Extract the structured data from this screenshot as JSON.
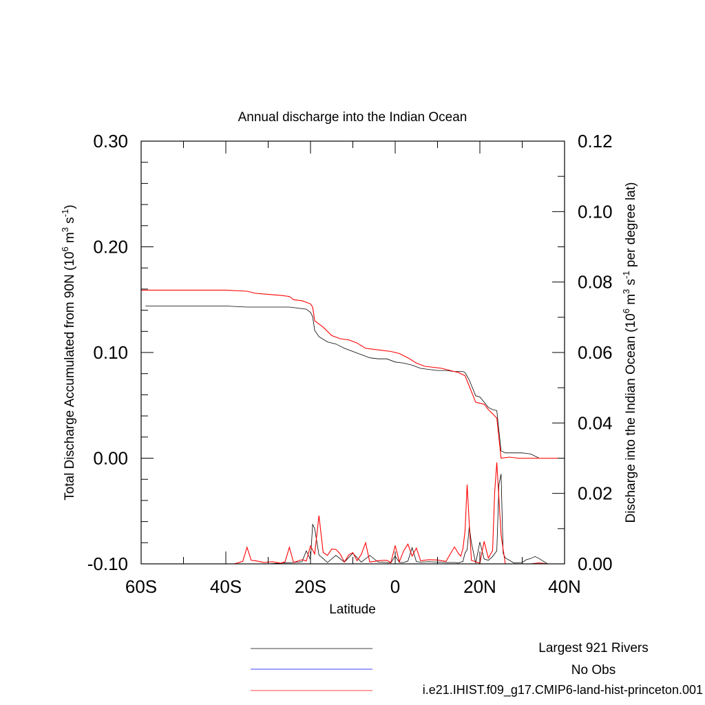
{
  "chart_data": {
    "type": "line",
    "title": "Annual discharge into the Indian Ocean",
    "xlabel": "Latitude",
    "ylabel_left": {
      "main": "Total Discharge Accumulated from 90N (10",
      "exp1": "6",
      "mid1": " m",
      "exp2": "3",
      "mid2": " s",
      "exp3": "-1",
      "end": ")"
    },
    "ylabel_right": {
      "main": "Discharge into the Indian Ocean (10",
      "exp1": "6",
      "mid1": " m",
      "exp2": "3",
      "mid2": " s",
      "exp3": "-1",
      "end": " per degree lat)"
    },
    "xlim": [
      -60,
      40
    ],
    "ylim_left": [
      -0.1,
      0.3
    ],
    "ylim_right": [
      0.0,
      0.12
    ],
    "x_ticks": [
      {
        "value": -60,
        "label": "60S"
      },
      {
        "value": -40,
        "label": "40S"
      },
      {
        "value": -20,
        "label": "20S"
      },
      {
        "value": 0,
        "label": "0"
      },
      {
        "value": 20,
        "label": "20N"
      },
      {
        "value": 40,
        "label": "40N"
      }
    ],
    "y_left_ticks": [
      {
        "value": 0.3,
        "label": "0.30"
      },
      {
        "value": 0.2,
        "label": "0.20"
      },
      {
        "value": 0.1,
        "label": "0.10"
      },
      {
        "value": 0.0,
        "label": "0.00"
      },
      {
        "value": -0.1,
        "label": "-0.10"
      }
    ],
    "y_right_ticks": [
      {
        "value": 0.12,
        "label": "0.12"
      },
      {
        "value": 0.1,
        "label": "0.10"
      },
      {
        "value": 0.08,
        "label": "0.08"
      },
      {
        "value": 0.06,
        "label": "0.06"
      },
      {
        "value": 0.04,
        "label": "0.04"
      },
      {
        "value": 0.02,
        "label": "0.02"
      },
      {
        "value": 0.0,
        "label": "0.00"
      }
    ],
    "grid": false,
    "legend_position": "bottom-right",
    "legend": [
      {
        "label": "Largest 921 Rivers",
        "color": "#000000"
      },
      {
        "label": "No Obs",
        "color": "#0000ff"
      },
      {
        "label": "i.e21.IHIST.f09_g17.CMIP6-land-hist-princeton.001",
        "color": "#ff0000"
      }
    ],
    "series": [
      {
        "axis": "left",
        "color": "#000000",
        "x": [
          -59,
          -50,
          -40,
          -35,
          -30,
          -25,
          -23,
          -21,
          -20,
          -19.5,
          -19,
          -18,
          -16,
          -14,
          -12,
          -10,
          -8,
          -6,
          -4,
          -2,
          0,
          2,
          4,
          6,
          8,
          10,
          12,
          14,
          16,
          16.5,
          17.5,
          19,
          20,
          21,
          22,
          23,
          24,
          25,
          26,
          28,
          30,
          32,
          34,
          36,
          38,
          40
        ],
        "y": [
          0.144,
          0.144,
          0.144,
          0.143,
          0.143,
          0.143,
          0.142,
          0.141,
          0.138,
          0.134,
          0.121,
          0.115,
          0.11,
          0.108,
          0.104,
          0.101,
          0.098,
          0.095,
          0.094,
          0.094,
          0.091,
          0.09,
          0.088,
          0.085,
          0.084,
          0.083,
          0.083,
          0.082,
          0.082,
          0.081,
          0.074,
          0.059,
          0.058,
          0.053,
          0.048,
          0.046,
          0.045,
          0.007,
          0.005,
          0.005,
          0.005,
          0.004,
          0.0,
          0.0,
          0.0,
          0.0
        ]
      },
      {
        "axis": "left",
        "color": "#ff0000",
        "x": [
          -60,
          -50,
          -40,
          -35,
          -33,
          -30,
          -27,
          -25,
          -24,
          -22,
          -20,
          -19.5,
          -19,
          -17,
          -15,
          -13,
          -11,
          -9,
          -7,
          -5,
          -3,
          -1,
          1,
          3,
          5,
          7,
          9,
          11,
          13,
          15,
          15.5,
          16.5,
          19,
          20,
          21,
          22,
          23,
          24,
          25,
          27,
          29,
          31,
          33,
          35,
          37,
          40
        ],
        "y": [
          0.159,
          0.159,
          0.159,
          0.158,
          0.156,
          0.155,
          0.154,
          0.153,
          0.15,
          0.149,
          0.146,
          0.143,
          0.13,
          0.124,
          0.116,
          0.113,
          0.112,
          0.109,
          0.104,
          0.103,
          0.102,
          0.101,
          0.099,
          0.095,
          0.09,
          0.087,
          0.086,
          0.085,
          0.083,
          0.081,
          0.08,
          0.078,
          0.053,
          0.052,
          0.051,
          0.046,
          0.042,
          0.038,
          0.0,
          0.001,
          0.0,
          0.0,
          0.0,
          0.0,
          0.0,
          0.0
        ]
      },
      {
        "axis": "right",
        "color": "#000000",
        "x": [
          -60,
          -35,
          -30,
          -26,
          -24,
          -22,
          -21,
          -20,
          -19.5,
          -19,
          -18,
          -17,
          -16,
          -14,
          -12,
          -10,
          -8,
          -6,
          -4,
          -2,
          -1,
          0,
          1,
          2,
          3,
          4,
          5,
          6,
          8,
          10,
          12,
          14,
          15,
          16,
          16.5,
          17,
          17.5,
          18,
          19,
          20,
          21,
          22,
          23,
          24,
          24.5,
          25,
          25.5,
          26,
          28,
          30,
          31,
          32,
          33,
          34,
          36,
          40
        ],
        "y": [
          0.0,
          0.0,
          0.0,
          0.0003,
          0.0004,
          0.0006,
          0.0037,
          0.0012,
          0.0112,
          0.01,
          0.0025,
          0.0015,
          0.0004,
          0.0024,
          0.0005,
          0.003,
          0.0005,
          0.0024,
          0.0005,
          0.0004,
          0.0003,
          0.0022,
          0.0004,
          0.0004,
          0.0008,
          0.0046,
          0.0006,
          0.0005,
          0.0006,
          0.0005,
          0.0004,
          0.0004,
          0.0003,
          0.0007,
          0.0031,
          0.004,
          0.0106,
          0.006,
          0.0002,
          0.0062,
          0.0014,
          0.001,
          0.0021,
          0.0037,
          0.0225,
          0.0255,
          0.003,
          0.0017,
          0.0003,
          0.0004,
          0.0012,
          0.0015,
          0.0021,
          0.0015,
          0.0,
          0.0
        ]
      },
      {
        "axis": "right",
        "color": "#ff0000",
        "x": [
          -60,
          -38,
          -36,
          -35,
          -34,
          -33,
          -31,
          -29,
          -27,
          -26,
          -25,
          -24,
          -22,
          -21,
          -20,
          -19,
          -18,
          -17,
          -16,
          -15,
          -14,
          -13,
          -12,
          -11,
          -10,
          -9,
          -8,
          -7,
          -6,
          -5,
          -4,
          -3,
          -2,
          -1,
          0,
          1,
          2,
          3,
          4,
          5,
          6,
          8,
          10,
          12,
          14,
          15,
          15.5,
          16,
          16.5,
          17,
          17.5,
          18,
          19,
          20,
          21,
          22,
          23,
          23.5,
          24,
          25,
          26,
          28,
          30,
          32,
          34,
          36,
          40
        ],
        "y": [
          0.0,
          0.0,
          0.0007,
          0.0047,
          0.001,
          0.0009,
          0.0004,
          0.0006,
          0.0002,
          0.0006,
          0.0047,
          0.0004,
          0.0012,
          0.0008,
          0.0051,
          0.0028,
          0.0137,
          0.0032,
          0.0024,
          0.0042,
          0.0041,
          0.0028,
          0.0005,
          0.0025,
          0.0032,
          0.0009,
          0.0027,
          0.006,
          0.0005,
          0.0007,
          0.0009,
          0.001,
          0.001,
          0.0004,
          0.0052,
          0.0006,
          0.0037,
          0.0056,
          0.0022,
          0.0045,
          0.0009,
          0.0012,
          0.0011,
          0.0007,
          0.0048,
          0.0028,
          0.0022,
          0.0043,
          0.0094,
          0.0225,
          0.0114,
          0.001,
          0.0006,
          0.0002,
          0.0064,
          0.0016,
          0.0038,
          0.0203,
          0.0288,
          0.0082,
          0.0,
          0.0,
          0.0,
          0.0,
          0.0003,
          0.0,
          0.0
        ]
      }
    ]
  }
}
